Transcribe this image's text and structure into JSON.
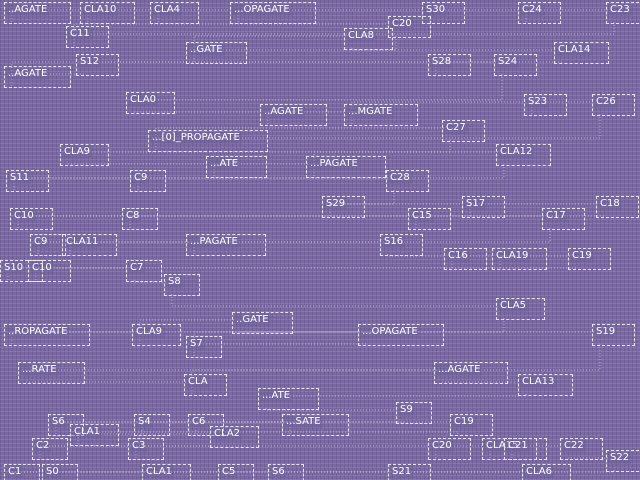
{
  "diagram": {
    "title": "",
    "colors": {
      "background": "#7a69a4",
      "box_outline": "#e8e4f2",
      "label": "#ffffff"
    },
    "cells": [
      {
        "id": "c01",
        "label": "..AGATE"
      },
      {
        "id": "c02",
        "label": "CLA10"
      },
      {
        "id": "c03",
        "label": "CLA4"
      },
      {
        "id": "c04",
        "label": "...OPAGATE"
      },
      {
        "id": "c05",
        "label": "S30"
      },
      {
        "id": "c06",
        "label": "C24"
      },
      {
        "id": "c07",
        "label": "C23"
      },
      {
        "id": "c08",
        "label": "C11"
      },
      {
        "id": "c09",
        "label": "C20"
      },
      {
        "id": "c10",
        "label": "..GATE"
      },
      {
        "id": "c11",
        "label": "CLA8"
      },
      {
        "id": "c12",
        "label": "CLA14"
      },
      {
        "id": "c13",
        "label": "S12"
      },
      {
        "id": "c14",
        "label": "..AGATE"
      },
      {
        "id": "c15",
        "label": "S28"
      },
      {
        "id": "c16",
        "label": "S24"
      },
      {
        "id": "c17",
        "label": "CLA0"
      },
      {
        "id": "c18",
        "label": "..AGATE"
      },
      {
        "id": "c19",
        "label": "...MGATE"
      },
      {
        "id": "c20",
        "label": "S23"
      },
      {
        "id": "c21",
        "label": "C26"
      },
      {
        "id": "c22",
        "label": "...[0]_PROPAGATE"
      },
      {
        "id": "c23",
        "label": "C27"
      },
      {
        "id": "c24",
        "label": "CLA9"
      },
      {
        "id": "c25",
        "label": "...ATE"
      },
      {
        "id": "c26",
        "label": "...PAGATE"
      },
      {
        "id": "c27",
        "label": "CLA12"
      },
      {
        "id": "c28",
        "label": "S11"
      },
      {
        "id": "c29",
        "label": "C9"
      },
      {
        "id": "c30",
        "label": "C28"
      },
      {
        "id": "c31",
        "label": "S29"
      },
      {
        "id": "c32",
        "label": "S17"
      },
      {
        "id": "c33",
        "label": "C18"
      },
      {
        "id": "c34",
        "label": "C10"
      },
      {
        "id": "c35",
        "label": "C8"
      },
      {
        "id": "c36",
        "label": "C15"
      },
      {
        "id": "c37",
        "label": "C17"
      },
      {
        "id": "c38",
        "label": "C9"
      },
      {
        "id": "c39",
        "label": "CLA11"
      },
      {
        "id": "c40",
        "label": "...PAGATE"
      },
      {
        "id": "c41",
        "label": "S16"
      },
      {
        "id": "c42",
        "label": "C16"
      },
      {
        "id": "c43",
        "label": "CLA19"
      },
      {
        "id": "c44",
        "label": "C19"
      },
      {
        "id": "c45",
        "label": "S10"
      },
      {
        "id": "c46",
        "label": "C10"
      },
      {
        "id": "c47",
        "label": "C7"
      },
      {
        "id": "c48",
        "label": "S8"
      },
      {
        "id": "c49",
        "label": "CLA5"
      },
      {
        "id": "c50",
        "label": "..ROPAGATE"
      },
      {
        "id": "c51",
        "label": "CLA9"
      },
      {
        "id": "c52",
        "label": "..GATE"
      },
      {
        "id": "c53",
        "label": "...OPAGATE"
      },
      {
        "id": "c54",
        "label": "S7"
      },
      {
        "id": "c55",
        "label": "S19"
      },
      {
        "id": "c56",
        "label": "...RATE"
      },
      {
        "id": "c57",
        "label": "CLA"
      },
      {
        "id": "c58",
        "label": "...AGATE"
      },
      {
        "id": "c59",
        "label": "CLA13"
      },
      {
        "id": "c60",
        "label": "...ATE"
      },
      {
        "id": "c61",
        "label": "S9"
      },
      {
        "id": "c62",
        "label": "S4"
      },
      {
        "id": "c63",
        "label": "C6"
      },
      {
        "id": "c64",
        "label": "...SATE"
      },
      {
        "id": "c65",
        "label": "S6"
      },
      {
        "id": "c66",
        "label": "C19"
      },
      {
        "id": "c67",
        "label": "CLA1"
      },
      {
        "id": "c68",
        "label": "CLA2"
      },
      {
        "id": "c69",
        "label": "C2"
      },
      {
        "id": "c70",
        "label": "C3"
      },
      {
        "id": "c71",
        "label": "C20"
      },
      {
        "id": "c72",
        "label": "CLA15"
      },
      {
        "id": "c73",
        "label": "C21"
      },
      {
        "id": "c74",
        "label": "C22"
      },
      {
        "id": "c75",
        "label": "S22"
      },
      {
        "id": "c76",
        "label": "C1"
      },
      {
        "id": "c77",
        "label": "S0"
      },
      {
        "id": "c78",
        "label": "CLA1"
      },
      {
        "id": "c79",
        "label": "C5"
      },
      {
        "id": "c80",
        "label": "S6"
      },
      {
        "id": "c81",
        "label": "S21"
      },
      {
        "id": "c82",
        "label": "CLA6"
      }
    ]
  }
}
